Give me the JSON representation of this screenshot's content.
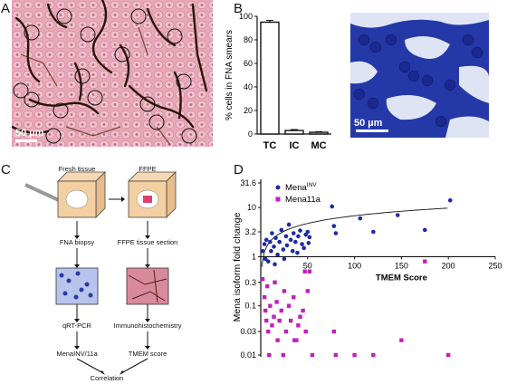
{
  "panels": {
    "A": {
      "letter": "A",
      "scale_label": "50 µm"
    },
    "B": {
      "letter": "B",
      "scale_label": "50 µm"
    },
    "C": {
      "letter": "C"
    },
    "D": {
      "letter": "D"
    }
  },
  "flow": {
    "fresh_tissue": "Fresh tissue",
    "ffpe": "FFPE",
    "fna_biopsy": "FNA biopsy",
    "ffpe_section": "FFPE tissue section",
    "qrt_pcr": "qRT-PCR",
    "ihc": "Immunohistochemistry",
    "mena_inv": "MenaINV/11a",
    "tmem_score": "TMEM score",
    "correlation": "Correlation"
  },
  "chart_data": [
    {
      "type": "bar",
      "panel": "B",
      "categories": [
        "TC",
        "IC",
        "MC"
      ],
      "values": [
        95,
        3,
        1.5
      ],
      "errors": [
        1.5,
        0.8,
        0.5
      ],
      "ylabel": "% cells in FNA smears",
      "ylim": [
        0,
        100
      ],
      "yticks": [
        "0",
        "20",
        "40",
        "60",
        "80",
        "100"
      ],
      "bar_fill": "#ffffff"
    },
    {
      "type": "scatter",
      "panel": "D",
      "xlabel": "TMEM Score",
      "ylabel": "Mena isoform fold change",
      "yscale": "log",
      "xlim": [
        0,
        250
      ],
      "xticks": [
        "50",
        "100",
        "150",
        "200",
        "250"
      ],
      "yticks": [
        "0.01",
        "0.03",
        "0.1",
        "0.3",
        "1",
        "3.2",
        "10",
        "31.6"
      ],
      "legend_position": "top-left",
      "series": [
        {
          "name": "Mena",
          "name_sup": "INV",
          "color": "#1a2aa8",
          "marker": "circle",
          "points": [
            [
              2,
              1.3
            ],
            [
              4,
              1.8
            ],
            [
              5,
              0.9
            ],
            [
              6,
              2.2
            ],
            [
              8,
              0.8
            ],
            [
              10,
              2.0
            ],
            [
              11,
              1.3
            ],
            [
              12,
              3.0
            ],
            [
              14,
              1.6
            ],
            [
              15,
              0.7
            ],
            [
              16,
              2.4
            ],
            [
              18,
              1.1
            ],
            [
              20,
              2.0
            ],
            [
              22,
              3.5
            ],
            [
              24,
              1.4
            ],
            [
              25,
              0.9
            ],
            [
              27,
              2.6
            ],
            [
              28,
              1.7
            ],
            [
              30,
              4.5
            ],
            [
              32,
              2.2
            ],
            [
              34,
              1.3
            ],
            [
              35,
              3.0
            ],
            [
              37,
              2.0
            ],
            [
              39,
              1.2
            ],
            [
              40,
              2.6
            ],
            [
              42,
              3.4
            ],
            [
              44,
              1.8
            ],
            [
              46,
              1.5
            ],
            [
              48,
              2.8
            ],
            [
              50,
              3.2
            ],
            [
              51,
              1.9
            ],
            [
              52,
              2.5
            ],
            [
              76,
              10.5
            ],
            [
              78,
              4.2
            ],
            [
              80,
              3.0
            ],
            [
              106,
              6.0
            ],
            [
              120,
              3.2
            ],
            [
              146,
              7.0
            ],
            [
              175,
              3.5
            ],
            [
              202,
              14.0
            ]
          ]
        },
        {
          "name": "Mena11a",
          "color": "#c020b8",
          "marker": "square",
          "points": [
            [
              2,
              0.35
            ],
            [
              4,
              0.15
            ],
            [
              5,
              0.08
            ],
            [
              6,
              0.05
            ],
            [
              7,
              0.25
            ],
            [
              8,
              0.03
            ],
            [
              9,
              0.01
            ],
            [
              10,
              0.1
            ],
            [
              12,
              0.04
            ],
            [
              14,
              0.06
            ],
            [
              15,
              0.3
            ],
            [
              17,
              0.12
            ],
            [
              18,
              0.02
            ],
            [
              20,
              0.05
            ],
            [
              22,
              0.08
            ],
            [
              24,
              0.01
            ],
            [
              25,
              0.2
            ],
            [
              27,
              0.03
            ],
            [
              30,
              0.1
            ],
            [
              32,
              0.05
            ],
            [
              35,
              0.15
            ],
            [
              36,
              0.02
            ],
            [
              38,
              0.02
            ],
            [
              40,
              0.04
            ],
            [
              42,
              0.06
            ],
            [
              45,
              0.08
            ],
            [
              47,
              0.5
            ],
            [
              48,
              0.03
            ],
            [
              50,
              0.2
            ],
            [
              52,
              0.5
            ],
            [
              55,
              0.01
            ],
            [
              78,
              0.03
            ],
            [
              80,
              0.01
            ],
            [
              100,
              0.01
            ],
            [
              120,
              0.01
            ],
            [
              150,
              0.02
            ],
            [
              175,
              0.8
            ],
            [
              200,
              0.01
            ]
          ]
        }
      ]
    }
  ]
}
